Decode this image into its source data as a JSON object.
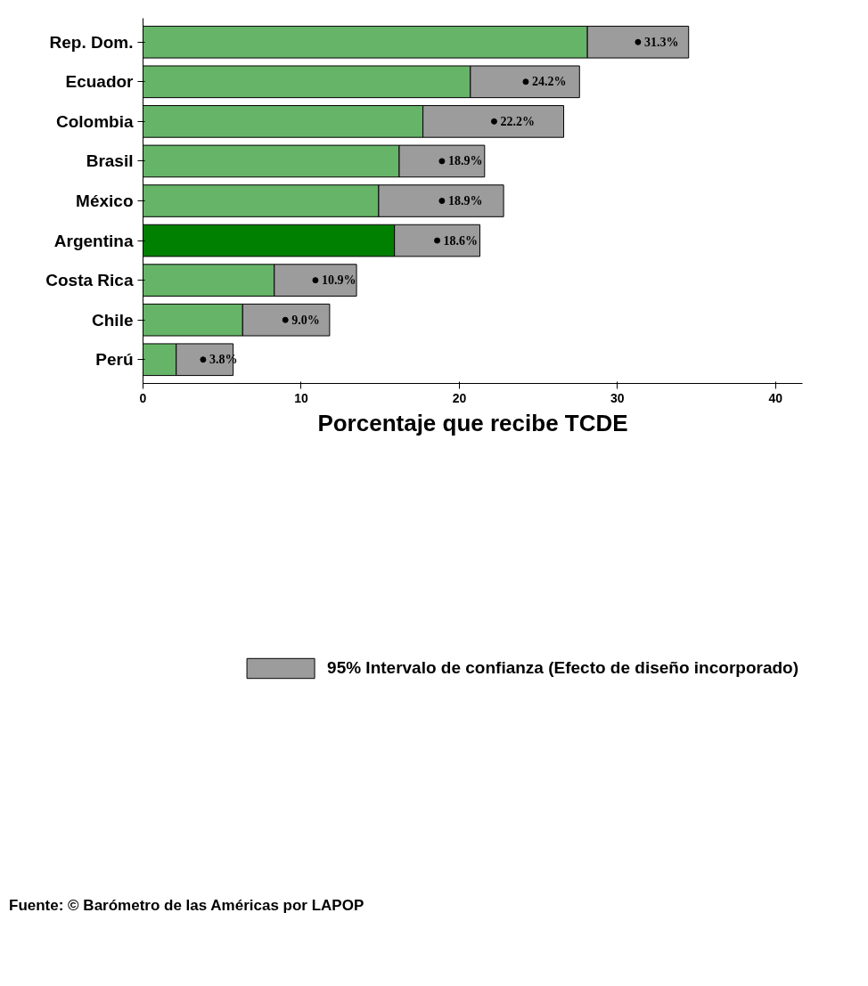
{
  "chart_data": {
    "type": "bar",
    "orientation": "horizontal",
    "stacked": true,
    "xlabel": "Porcentaje que recibe TCDE",
    "categories": [
      "Rep. Dom.",
      "Ecuador",
      "Colombia",
      "Brasil",
      "México",
      "Argentina",
      "Costa Rica",
      "Chile",
      "Perú"
    ],
    "series": [
      {
        "colors": [
          "#66b468",
          "#66b468",
          "#66b468",
          "#66b468",
          "#66b468",
          "#008000",
          "#66b468",
          "#66b468",
          "#66b468"
        ],
        "values": [
          28.1,
          20.7,
          17.7,
          16.2,
          14.9,
          15.9,
          8.3,
          6.3,
          2.1
        ]
      },
      {
        "name": "95% Intervalo de confianza (Efecto de diseño incorporado)",
        "color": "#9c9c9c",
        "values": [
          6.4,
          6.9,
          8.9,
          5.4,
          7.9,
          5.4,
          5.2,
          5.5,
          3.6
        ]
      },
      {
        "type": "scatter",
        "color": "#000000",
        "x": [
          "Rep. Dom.",
          "Ecuador",
          "Colombia",
          "Brasil",
          "México",
          "Argentina",
          "Costa Rica",
          "Chile",
          "Perú"
        ],
        "values": [
          31.3,
          24.2,
          22.2,
          18.9,
          18.9,
          18.6,
          10.9,
          9.0,
          3.8
        ],
        "value_labels": [
          "31.3%",
          "24.2%",
          "22.2%",
          "18.9%",
          "18.9%",
          "18.6%",
          "10.9%",
          "9.0%",
          "3.8%"
        ]
      }
    ],
    "xlim": [
      0,
      41.7
    ],
    "xticks": [
      0,
      10,
      20,
      30,
      40
    ],
    "grid": false,
    "legend": "bottom",
    "marker": "circle",
    "annotations": [
      "Fuente: © Barómetro de las Américas por LAPOP"
    ]
  }
}
